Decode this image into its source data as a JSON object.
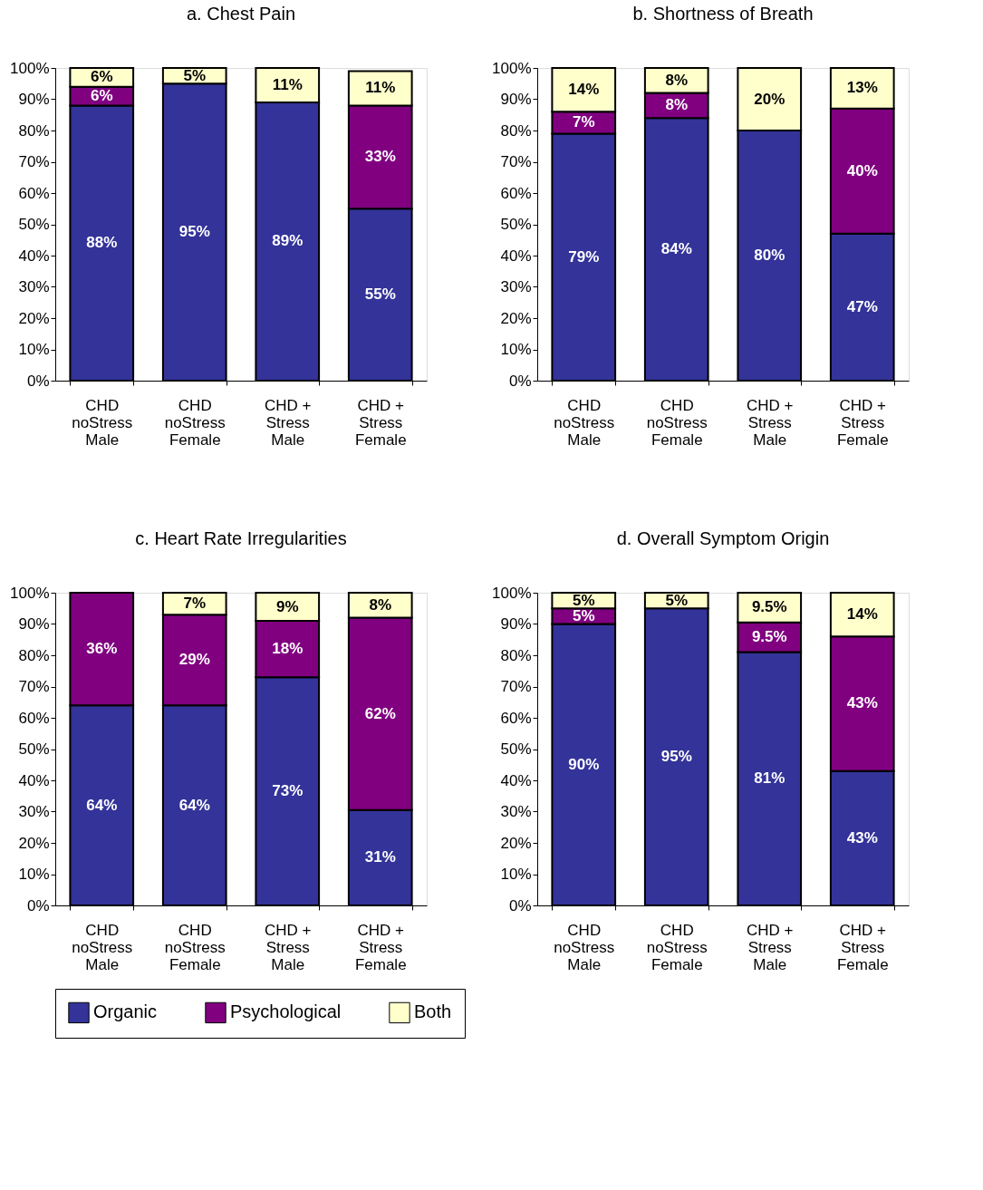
{
  "chart_data": [
    {
      "type": "bar",
      "stacked": true,
      "title": "a.  Chest Pain",
      "categories": [
        "CHD\nnoStress\nMale",
        "CHD\nnoStress\nFemale",
        "CHD +\nStress\nMale",
        "CHD +\nStress\nFemale"
      ],
      "series": [
        {
          "name": "Organic",
          "color": "#333399",
          "values": [
            88,
            95,
            89,
            55
          ],
          "value_labels": [
            "88%",
            "95%",
            "89%",
            "55%"
          ]
        },
        {
          "name": "Psychological",
          "color": "#800080",
          "values": [
            6,
            null,
            null,
            33
          ],
          "value_labels": [
            "6%",
            null,
            null,
            "33%"
          ]
        },
        {
          "name": "Both",
          "color": "#ffffcc",
          "values": [
            6,
            5,
            11,
            11
          ],
          "value_labels": [
            "6%",
            "5%",
            "11%",
            "11%"
          ]
        }
      ],
      "ylim": [
        0,
        100
      ],
      "yticks": [
        {
          "value": 0,
          "label": "0%"
        },
        {
          "value": 10,
          "label": "10%"
        },
        {
          "value": 20,
          "label": "20%"
        },
        {
          "value": 30,
          "label": "30%"
        },
        {
          "value": 40,
          "label": "40%"
        },
        {
          "value": 50,
          "label": "50%"
        },
        {
          "value": 60,
          "label": "60%"
        },
        {
          "value": 70,
          "label": "70%"
        },
        {
          "value": 80,
          "label": "80%"
        },
        {
          "value": 90,
          "label": "90%"
        },
        {
          "value": 100,
          "label": "100%"
        }
      ],
      "grid": false,
      "legend": "bottom"
    },
    {
      "type": "bar",
      "stacked": true,
      "title": "b.  Shortness of Breath",
      "categories": [
        "CHD\nnoStress\nMale",
        "CHD\nnoStress\nFemale",
        "CHD +\nStress\nMale",
        "CHD +\nStress\nFemale"
      ],
      "series": [
        {
          "name": "Organic",
          "color": "#333399",
          "values": [
            79,
            84,
            80,
            47
          ],
          "value_labels": [
            "79%",
            "84%",
            "80%",
            "47%"
          ]
        },
        {
          "name": "Psychological",
          "color": "#800080",
          "values": [
            7,
            8,
            null,
            40
          ],
          "value_labels": [
            "7%",
            "8%",
            null,
            "40%"
          ]
        },
        {
          "name": "Both",
          "color": "#ffffcc",
          "values": [
            14,
            8,
            20,
            13
          ],
          "value_labels": [
            "14%",
            "8%",
            "20%",
            "13%"
          ]
        }
      ],
      "ylim": [
        0,
        100
      ],
      "yticks": [
        {
          "value": 0,
          "label": "0%"
        },
        {
          "value": 10,
          "label": "10%"
        },
        {
          "value": 20,
          "label": "20%"
        },
        {
          "value": 30,
          "label": "30%"
        },
        {
          "value": 40,
          "label": "40%"
        },
        {
          "value": 50,
          "label": "50%"
        },
        {
          "value": 60,
          "label": "60%"
        },
        {
          "value": 70,
          "label": "70%"
        },
        {
          "value": 80,
          "label": "80%"
        },
        {
          "value": 90,
          "label": "90%"
        },
        {
          "value": 100,
          "label": "100%"
        }
      ],
      "grid": false,
      "legend": "bottom"
    },
    {
      "type": "bar",
      "stacked": true,
      "title": "c. Heart Rate Irregularities",
      "categories": [
        "CHD\nnoStress\nMale",
        "CHD\nnoStress\nFemale",
        "CHD +\nStress\nMale",
        "CHD +\nStress\nFemale"
      ],
      "series": [
        {
          "name": "Organic",
          "color": "#333399",
          "values": [
            64,
            64,
            73,
            30.5
          ],
          "value_labels": [
            "64%",
            "64%",
            "73%",
            "31%"
          ]
        },
        {
          "name": "Psychological",
          "color": "#800080",
          "values": [
            36,
            29,
            18,
            61.5
          ],
          "value_labels": [
            "36%",
            "29%",
            "18%",
            "62%"
          ]
        },
        {
          "name": "Both",
          "color": "#ffffcc",
          "values": [
            null,
            7,
            9,
            8
          ],
          "value_labels": [
            null,
            "7%",
            "9%",
            "8%"
          ]
        }
      ],
      "ylim": [
        0,
        100
      ],
      "yticks": [
        {
          "value": 0,
          "label": "0%"
        },
        {
          "value": 10,
          "label": "10%"
        },
        {
          "value": 20,
          "label": "20%"
        },
        {
          "value": 30,
          "label": "30%"
        },
        {
          "value": 40,
          "label": "40%"
        },
        {
          "value": 50,
          "label": "50%"
        },
        {
          "value": 60,
          "label": "60%"
        },
        {
          "value": 70,
          "label": "70%"
        },
        {
          "value": 80,
          "label": "80%"
        },
        {
          "value": 90,
          "label": "90%"
        },
        {
          "value": 100,
          "label": "100%"
        }
      ],
      "grid": false,
      "legend": "bottom"
    },
    {
      "type": "bar",
      "stacked": true,
      "title": "d.  Overall Symptom Origin",
      "categories": [
        "CHD\nnoStress\nMale",
        "CHD\nnoStress\nFemale",
        "CHD +\nStress\nMale",
        "CHD +\nStress\nFemale"
      ],
      "series": [
        {
          "name": "Organic",
          "color": "#333399",
          "values": [
            90,
            95,
            81,
            43
          ],
          "value_labels": [
            "90%",
            "95%",
            "81%",
            "43%"
          ]
        },
        {
          "name": "Psychological",
          "color": "#800080",
          "values": [
            5,
            null,
            9.5,
            43
          ],
          "value_labels": [
            "5%",
            null,
            "9.5%",
            "43%"
          ]
        },
        {
          "name": "Both",
          "color": "#ffffcc",
          "values": [
            5,
            5,
            9.5,
            14
          ],
          "value_labels": [
            "5%",
            "5%",
            "9.5%",
            "14%"
          ]
        }
      ],
      "ylim": [
        0,
        100
      ],
      "yticks": [
        {
          "value": 0,
          "label": "0%"
        },
        {
          "value": 10,
          "label": "10%"
        },
        {
          "value": 20,
          "label": "20%"
        },
        {
          "value": 30,
          "label": "30%"
        },
        {
          "value": 40,
          "label": "40%"
        },
        {
          "value": 50,
          "label": "50%"
        },
        {
          "value": 60,
          "label": "60%"
        },
        {
          "value": 70,
          "label": "70%"
        },
        {
          "value": 80,
          "label": "80%"
        },
        {
          "value": 90,
          "label": "90%"
        },
        {
          "value": 100,
          "label": "100%"
        }
      ],
      "grid": false,
      "legend": "bottom"
    }
  ]
}
